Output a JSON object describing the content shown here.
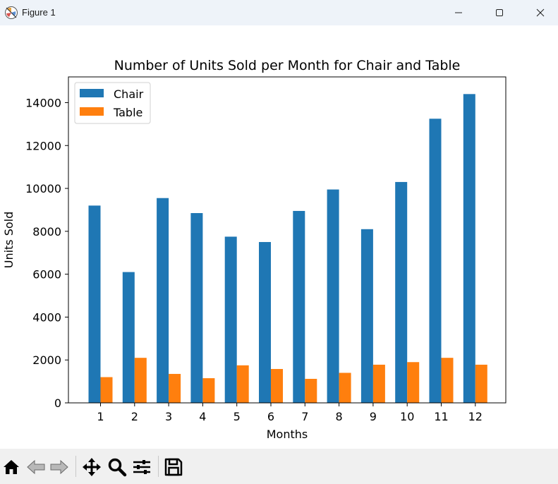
{
  "window": {
    "title": "Figure 1",
    "controls": [
      "minimize-icon",
      "maximize-icon",
      "close-icon"
    ]
  },
  "toolbar": {
    "buttons": [
      "home-icon",
      "back-icon",
      "forward-icon",
      "pan-icon",
      "zoom-icon",
      "configure-subplots-icon",
      "save-icon"
    ]
  },
  "colors": {
    "chair": "#1f77b4",
    "table": "#ff7f0e"
  },
  "chart_data": {
    "type": "bar",
    "title": "Number of Units Sold per Month for Chair and Table",
    "xlabel": "Months",
    "ylabel": "Units Sold",
    "categories": [
      "1",
      "2",
      "3",
      "4",
      "5",
      "6",
      "7",
      "8",
      "9",
      "10",
      "11",
      "12"
    ],
    "series": [
      {
        "name": "Chair",
        "values": [
          9200,
          6100,
          9550,
          8850,
          7750,
          7500,
          8950,
          9950,
          8100,
          10300,
          13250,
          14400
        ]
      },
      {
        "name": "Table",
        "values": [
          1200,
          2100,
          1350,
          1150,
          1750,
          1580,
          1120,
          1400,
          1780,
          1900,
          2100,
          1780
        ]
      }
    ],
    "ylim": [
      0,
      15200
    ],
    "yticks": [
      0,
      2000,
      4000,
      6000,
      8000,
      10000,
      12000,
      14000
    ],
    "grid": false,
    "legend": "top-left"
  }
}
